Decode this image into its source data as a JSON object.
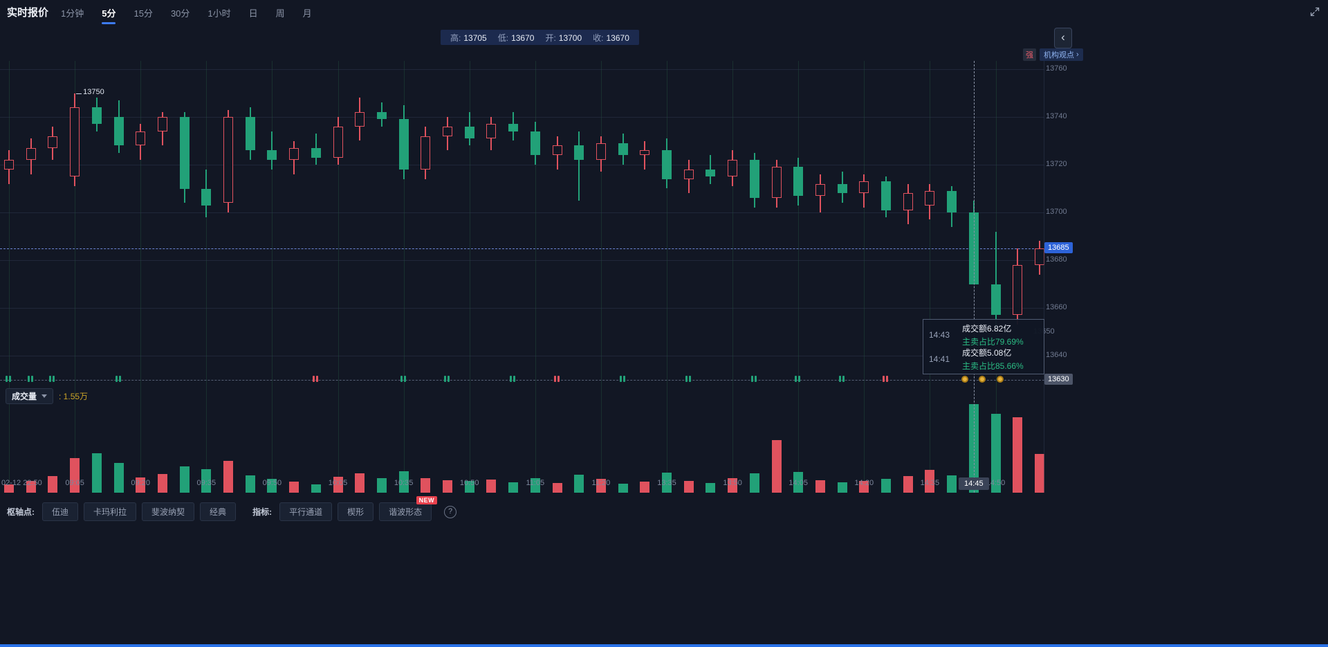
{
  "header": {
    "title": "实时报价",
    "tabs": [
      {
        "label": "1分钟",
        "active": false
      },
      {
        "label": "5分",
        "active": true
      },
      {
        "label": "15分",
        "active": false
      },
      {
        "label": "30分",
        "active": false
      },
      {
        "label": "1小时",
        "active": false
      },
      {
        "label": "日",
        "active": false
      },
      {
        "label": "周",
        "active": false
      },
      {
        "label": "月",
        "active": false
      }
    ],
    "ohlc": [
      {
        "label": "高:",
        "value": "13705"
      },
      {
        "label": "低:",
        "value": "13670"
      },
      {
        "label": "开:",
        "value": "13700"
      },
      {
        "label": "收:",
        "value": "13670"
      }
    ]
  },
  "right_panel": {
    "collapse_icon": "‹",
    "strength_badge": "强",
    "insight_label": "机构观点",
    "insight_arrow": "›"
  },
  "chart_data": {
    "type": "candlestick",
    "price_axis": {
      "ticks": [
        13760,
        13740,
        13720,
        13700,
        13680,
        13660,
        13640
      ],
      "low_marker": 13650,
      "current_price": 13685,
      "baseline": 13630
    },
    "high_annotation": {
      "bar": 3,
      "price": 13750,
      "label": "13750"
    },
    "crosshair": {
      "bar": 44,
      "label": "14:45"
    },
    "volume_max": 15500,
    "candles": [
      [
        "22:50",
        13718,
        13726,
        13712,
        13722,
        1400
      ],
      [
        "22:55",
        13722,
        13731,
        13716,
        13727,
        2100
      ],
      [
        "23:00",
        13727,
        13736,
        13722,
        13732,
        2900
      ],
      [
        "09:05",
        13715,
        13750,
        13711,
        13744,
        6100
      ],
      [
        "09:10",
        13744,
        13748,
        13734,
        13737,
        6900
      ],
      [
        "09:15",
        13740,
        13747,
        13725,
        13728,
        5200
      ],
      [
        "09:20",
        13728,
        13737,
        13722,
        13734,
        2700
      ],
      [
        "09:25",
        13734,
        13742,
        13728,
        13740,
        3300
      ],
      [
        "09:30",
        13740,
        13742,
        13704,
        13710,
        4600
      ],
      [
        "09:35",
        13710,
        13718,
        13698,
        13703,
        4100
      ],
      [
        "09:40",
        13704,
        13743,
        13700,
        13740,
        5600
      ],
      [
        "09:45",
        13740,
        13744,
        13722,
        13726,
        3000
      ],
      [
        "09:50",
        13726,
        13734,
        13718,
        13722,
        2400
      ],
      [
        "09:55",
        13722,
        13730,
        13716,
        13727,
        1900
      ],
      [
        "10:00",
        13727,
        13733,
        13720,
        13723,
        1500
      ],
      [
        "10:05",
        13723,
        13740,
        13720,
        13736,
        2800
      ],
      [
        "10:10",
        13736,
        13748,
        13730,
        13742,
        3400
      ],
      [
        "10:15",
        13742,
        13746,
        13736,
        13739,
        2600
      ],
      [
        "10:35",
        13739,
        13745,
        13714,
        13718,
        3800
      ],
      [
        "10:40",
        13718,
        13736,
        13714,
        13732,
        2500
      ],
      [
        "10:45",
        13732,
        13740,
        13726,
        13736,
        2200
      ],
      [
        "10:50",
        13736,
        13742,
        13728,
        13731,
        2000
      ],
      [
        "10:55",
        13731,
        13740,
        13726,
        13737,
        2300
      ],
      [
        "11:00",
        13737,
        13742,
        13730,
        13734,
        1800
      ],
      [
        "11:05",
        13734,
        13738,
        13720,
        13724,
        2600
      ],
      [
        "11:10",
        13724,
        13732,
        13718,
        13728,
        1700
      ],
      [
        "11:15",
        13728,
        13734,
        13705,
        13722,
        3100
      ],
      [
        "11:20",
        13722,
        13732,
        13717,
        13729,
        2400
      ],
      [
        "11:25",
        13729,
        13733,
        13720,
        13724,
        1600
      ],
      [
        "11:30",
        13724,
        13730,
        13718,
        13726,
        1900
      ],
      [
        "13:35",
        13726,
        13731,
        13710,
        13714,
        3500
      ],
      [
        "13:40",
        13714,
        13722,
        13708,
        13718,
        2100
      ],
      [
        "13:45",
        13718,
        13724,
        13712,
        13715,
        1700
      ],
      [
        "13:50",
        13715,
        13726,
        13711,
        13722,
        2600
      ],
      [
        "13:55",
        13722,
        13725,
        13702,
        13706,
        3400
      ],
      [
        "14:00",
        13706,
        13722,
        13702,
        13719,
        9200
      ],
      [
        "14:05",
        13719,
        13723,
        13703,
        13707,
        3600
      ],
      [
        "14:10",
        13707,
        13716,
        13700,
        13712,
        2200
      ],
      [
        "14:15",
        13712,
        13717,
        13704,
        13708,
        1800
      ],
      [
        "14:20",
        13708,
        13716,
        13702,
        13713,
        2000
      ],
      [
        "14:25",
        13713,
        13715,
        13698,
        13701,
        2400
      ],
      [
        "14:30",
        13701,
        13712,
        13695,
        13708,
        2900
      ],
      [
        "14:35",
        13703,
        13712,
        13697,
        13709,
        4000
      ],
      [
        "14:40",
        13709,
        13711,
        13694,
        13700,
        3000
      ],
      [
        "14:45",
        13700,
        13705,
        13670,
        13670,
        15500
      ],
      [
        "14:50",
        13670,
        13692,
        13650,
        13657,
        13800
      ],
      [
        "14:55",
        13657,
        13685,
        13653,
        13678,
        13200
      ],
      [
        "15:00",
        13678,
        13688,
        13674,
        13685,
        6800
      ]
    ],
    "time_labels": [
      [
        0,
        "02-12 22:50",
        "left"
      ],
      [
        3,
        "09:05"
      ],
      [
        6,
        "09:20"
      ],
      [
        9,
        "09:35"
      ],
      [
        12,
        "09:50"
      ],
      [
        15,
        "10:05"
      ],
      [
        18,
        "10:35"
      ],
      [
        21,
        "10:50"
      ],
      [
        24,
        "11:05"
      ],
      [
        27,
        "11:20"
      ],
      [
        30,
        "13:35"
      ],
      [
        33,
        "13:50"
      ],
      [
        36,
        "14:05"
      ],
      [
        39,
        "14:20"
      ],
      [
        42,
        "14:35"
      ],
      [
        45,
        "14:50"
      ]
    ],
    "markers": [
      [
        0,
        "g"
      ],
      [
        1,
        "g"
      ],
      [
        2,
        "g"
      ],
      [
        5,
        "g"
      ],
      [
        14,
        "r"
      ],
      [
        18,
        "g"
      ],
      [
        20,
        "g"
      ],
      [
        23,
        "g"
      ],
      [
        25,
        "r"
      ],
      [
        28,
        "g"
      ],
      [
        31,
        "g"
      ],
      [
        34,
        "g"
      ],
      [
        36,
        "g"
      ],
      [
        38,
        "g"
      ],
      [
        40,
        "r"
      ],
      [
        43.6,
        "y"
      ],
      [
        44.4,
        "y"
      ],
      [
        45.2,
        "y"
      ]
    ]
  },
  "volume": {
    "title": "成交量",
    "value": ": 1.55万"
  },
  "tooltip": {
    "rows": [
      {
        "time": "14:43",
        "amount": "成交额6.82亿",
        "ratio": "主卖占比79.69%"
      },
      {
        "time": "14:41",
        "amount": "成交额5.08亿",
        "ratio": "主卖占比85.66%"
      }
    ]
  },
  "toolbar": {
    "pivot_label": "枢轴点:",
    "pivot_buttons": [
      "伍迪",
      "卡玛利拉",
      "斐波纳契",
      "经典"
    ],
    "indicator_label": "指标:",
    "indicator_buttons": [
      "平行通道",
      "楔形",
      "谐波形态"
    ],
    "new_badge": "NEW",
    "help_icon": "?"
  },
  "colors": {
    "bg": "#121724",
    "up": "#e0525e",
    "down": "#22a178",
    "accent": "#2d63d8",
    "baseline_badge": "#4d5568",
    "volume_value": "#c9a227",
    "ratio_green": "#2bbd85"
  }
}
